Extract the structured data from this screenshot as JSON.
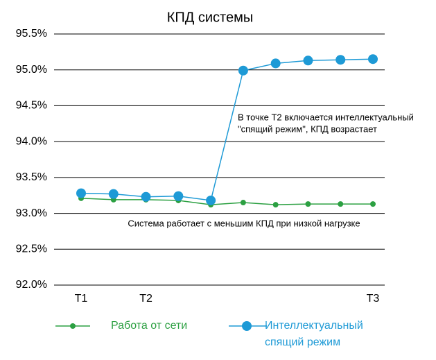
{
  "chart_data": {
    "type": "line",
    "title": "КПД системы",
    "categories": [
      "T1",
      null,
      "T2",
      null,
      null,
      null,
      null,
      null,
      null,
      "T3"
    ],
    "series": [
      {
        "name": "Работа от сети",
        "color": "#2ca042",
        "values": [
          93.21,
          93.19,
          93.19,
          93.18,
          93.12,
          93.15,
          93.12,
          93.13,
          93.13,
          93.13
        ]
      },
      {
        "name": "Интеллектуальный спящий режим",
        "color": "#1e9ad6",
        "values": [
          93.28,
          93.27,
          93.23,
          93.24,
          93.18,
          94.99,
          95.09,
          95.13,
          95.14,
          95.15
        ]
      }
    ],
    "ylim": [
      92.0,
      95.5
    ],
    "yticks": [
      {
        "value": 92.0,
        "label": "92.0%"
      },
      {
        "value": 92.5,
        "label": "92.5%"
      },
      {
        "value": 93.0,
        "label": "93.0%"
      },
      {
        "value": 93.5,
        "label": "93.5%"
      },
      {
        "value": 94.0,
        "label": "94.0%"
      },
      {
        "value": 94.5,
        "label": "94.5%"
      },
      {
        "value": 95.0,
        "label": "95.0%"
      },
      {
        "value": 95.5,
        "label": "95.5%"
      }
    ],
    "grid": true,
    "annotations": [
      "В точке Т2 включается интеллектуальный",
      "\"спящий режим\", КПД возрастает",
      "Система работает с меньшим КПД при низкой нагрузке"
    ]
  }
}
